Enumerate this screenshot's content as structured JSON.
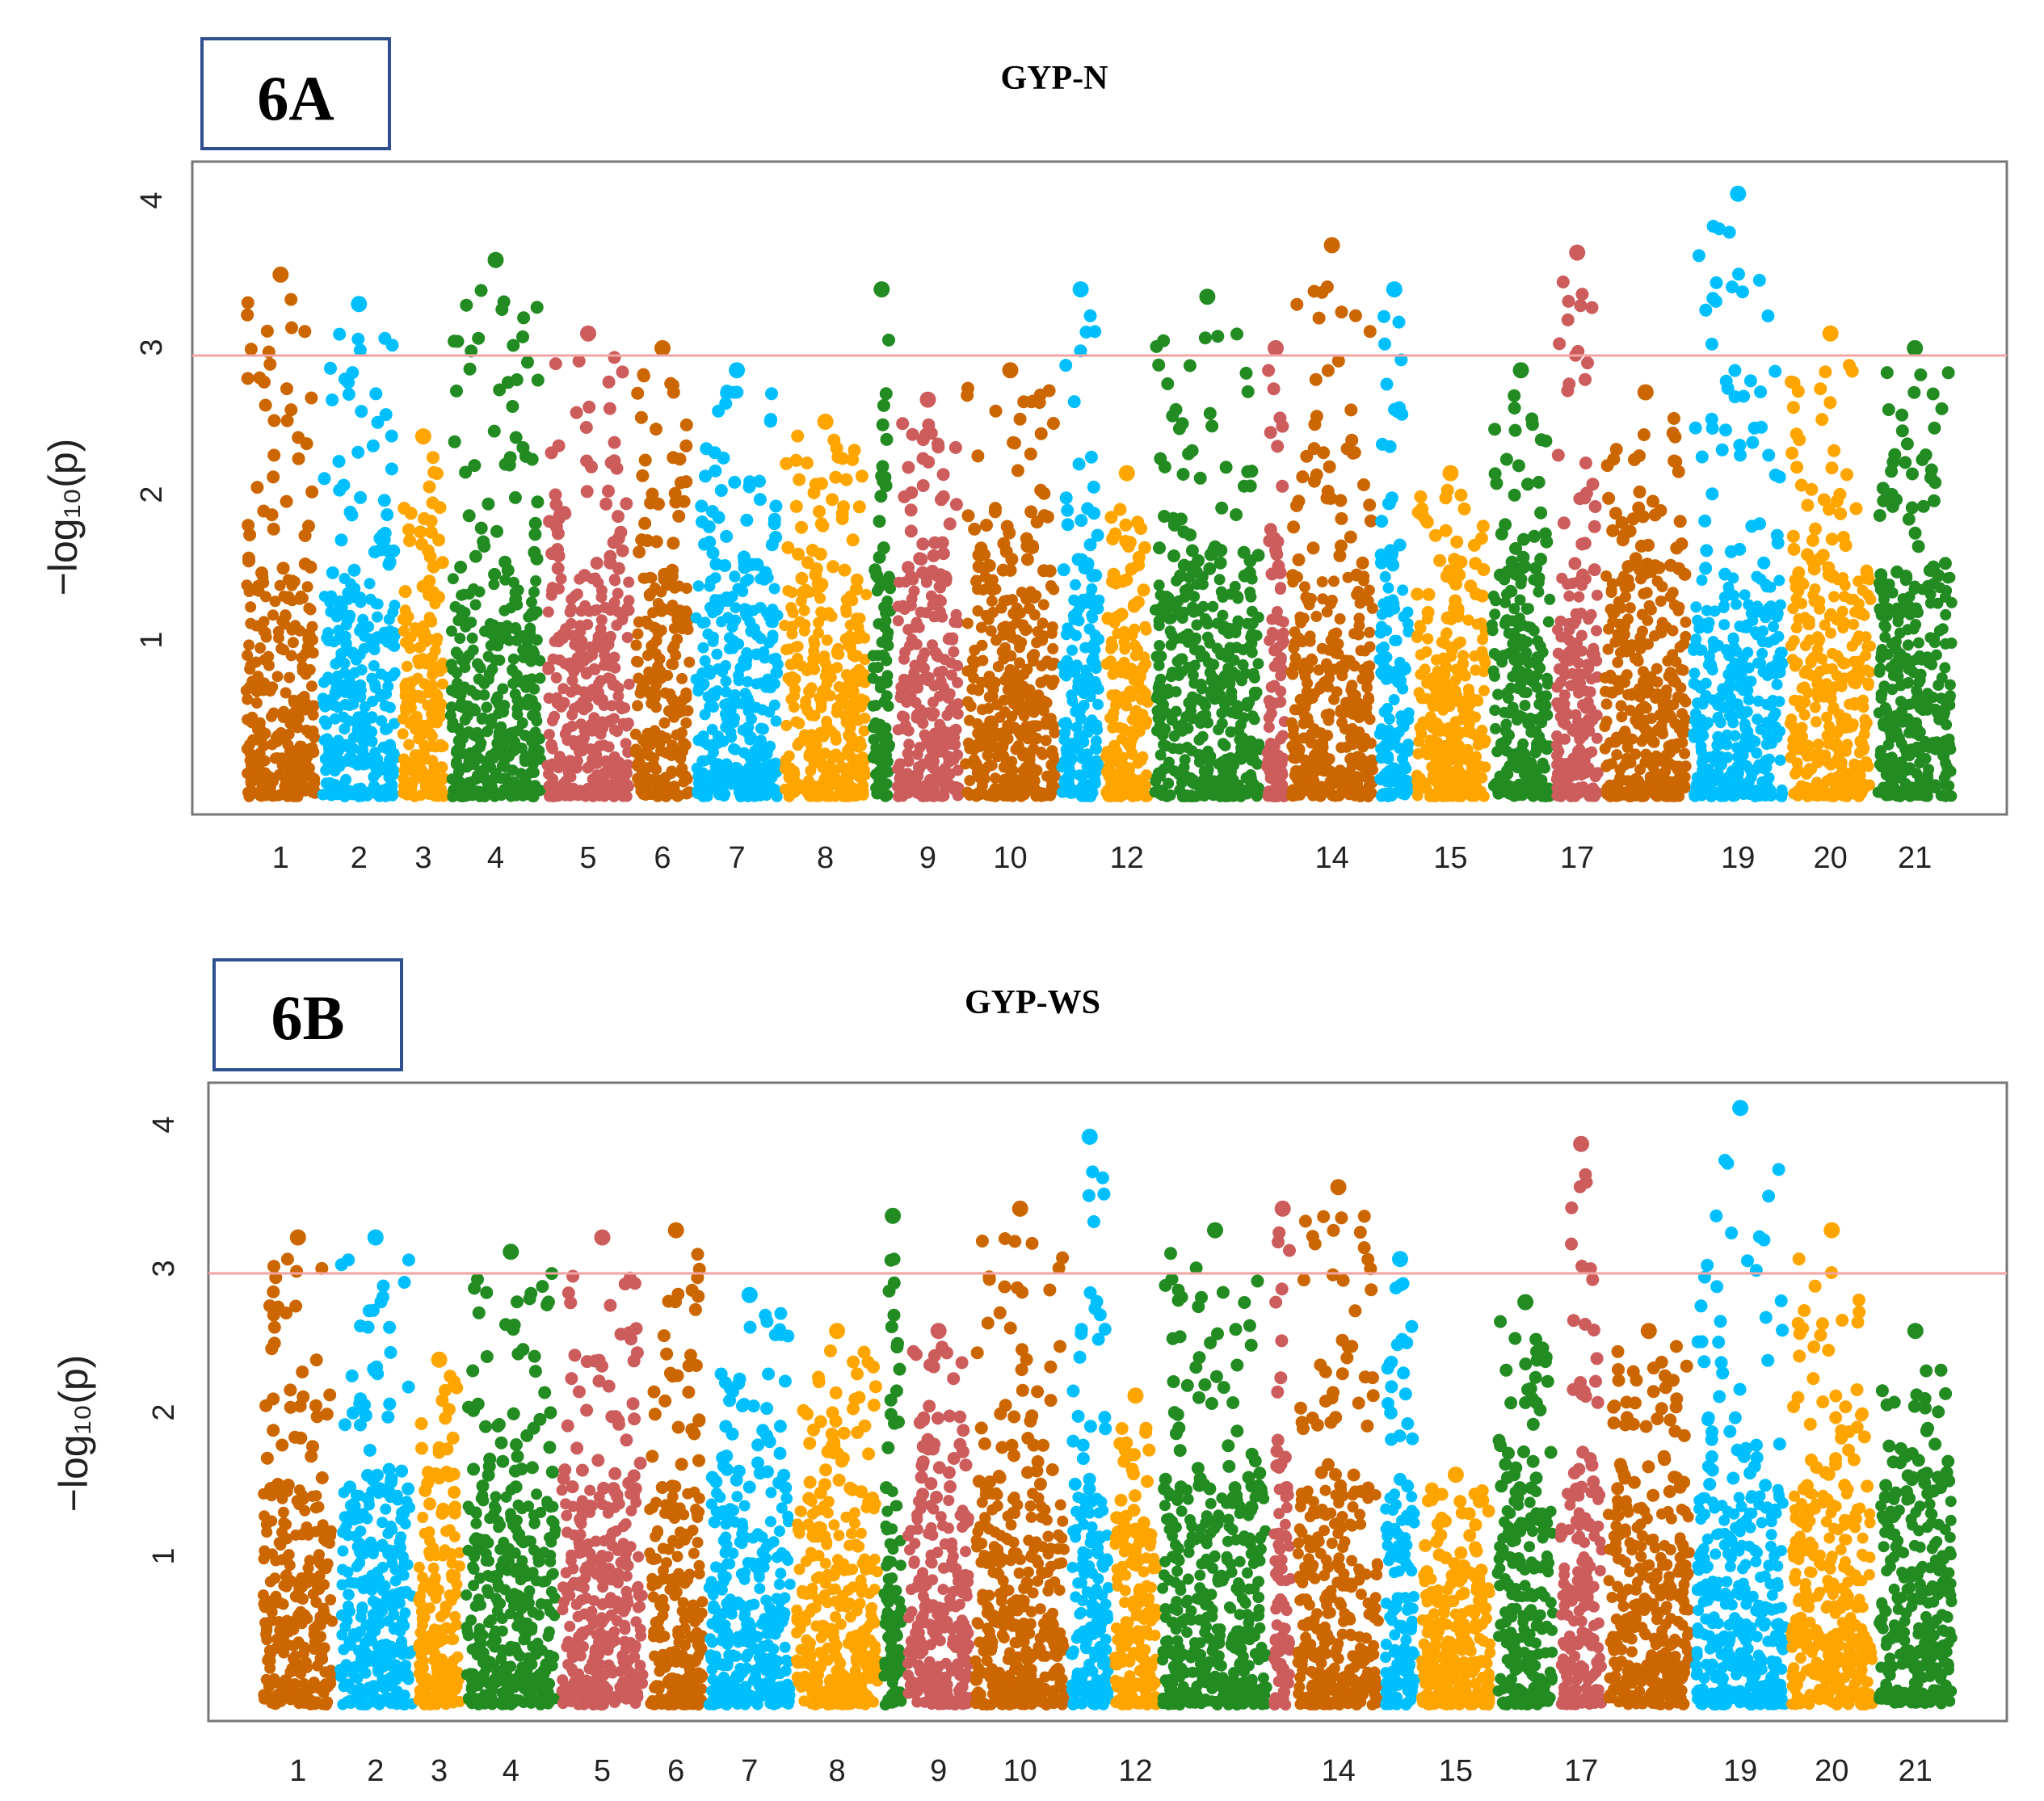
{
  "figure": {
    "colors": {
      "chr_palette": [
        "#cc6600",
        "#00bfff",
        "#ffa500",
        "#228b22",
        "#cd5c5c"
      ],
      "threshold_line": "#f4a3a3",
      "panel_border": "#2f4f8f",
      "axis": "#777777"
    }
  },
  "chart_data": [
    {
      "type": "scatter",
      "panel_label": "6A",
      "title": "GYP-N",
      "ylabel": "−log₁₀(p)",
      "xlabel": "",
      "ylim": [
        0,
        4.2
      ],
      "yticks": [
        "1",
        "2",
        "3",
        "4"
      ],
      "threshold": 3,
      "chromosomes": [
        {
          "label": "1",
          "max": 3.55
        },
        {
          "label": "2",
          "max": 3.35
        },
        {
          "label": "3",
          "max": 2.45
        },
        {
          "label": "4",
          "max": 3.65
        },
        {
          "label": "5",
          "max": 3.15
        },
        {
          "label": "6",
          "max": 3.05
        },
        {
          "label": "7",
          "max": 2.9
        },
        {
          "label": "8",
          "max": 2.55
        },
        {
          "label": "",
          "max": 3.45
        },
        {
          "label": "9",
          "max": 2.7
        },
        {
          "label": "10",
          "max": 2.9
        },
        {
          "label": "",
          "max": 3.45
        },
        {
          "label": "12",
          "max": 2.2
        },
        {
          "label": "",
          "max": 3.4
        },
        {
          "label": "",
          "max": 3.05
        },
        {
          "label": "14",
          "max": 3.75
        },
        {
          "label": "",
          "max": 3.45
        },
        {
          "label": "15",
          "max": 2.2
        },
        {
          "label": "",
          "max": 2.9
        },
        {
          "label": "17",
          "max": 3.7
        },
        {
          "label": "",
          "max": 2.75
        },
        {
          "label": "19",
          "max": 4.1
        },
        {
          "label": "20",
          "max": 3.15
        },
        {
          "label": "21",
          "max": 3.05
        }
      ]
    },
    {
      "type": "scatter",
      "panel_label": "6B",
      "title": "GYP-WS",
      "ylabel": "−log₁₀(p)",
      "xlabel": "",
      "ylim": [
        0,
        4.2
      ],
      "yticks": [
        "1",
        "2",
        "3",
        "4"
      ],
      "threshold": 3,
      "chromosomes": [
        {
          "label": "1",
          "max": 3.25
        },
        {
          "label": "2",
          "max": 3.25
        },
        {
          "label": "3",
          "max": 2.4
        },
        {
          "label": "4",
          "max": 3.15
        },
        {
          "label": "5",
          "max": 3.25
        },
        {
          "label": "6",
          "max": 3.3
        },
        {
          "label": "7",
          "max": 2.85
        },
        {
          "label": "8",
          "max": 2.6
        },
        {
          "label": "",
          "max": 3.4
        },
        {
          "label": "9",
          "max": 2.6
        },
        {
          "label": "10",
          "max": 3.45
        },
        {
          "label": "",
          "max": 3.95
        },
        {
          "label": "12",
          "max": 2.15
        },
        {
          "label": "",
          "max": 3.3
        },
        {
          "label": "",
          "max": 3.45
        },
        {
          "label": "14",
          "max": 3.6
        },
        {
          "label": "",
          "max": 3.1
        },
        {
          "label": "15",
          "max": 1.6
        },
        {
          "label": "",
          "max": 2.8
        },
        {
          "label": "17",
          "max": 3.9
        },
        {
          "label": "",
          "max": 2.6
        },
        {
          "label": "19",
          "max": 4.15
        },
        {
          "label": "20",
          "max": 3.3
        },
        {
          "label": "21",
          "max": 2.6
        }
      ]
    }
  ]
}
